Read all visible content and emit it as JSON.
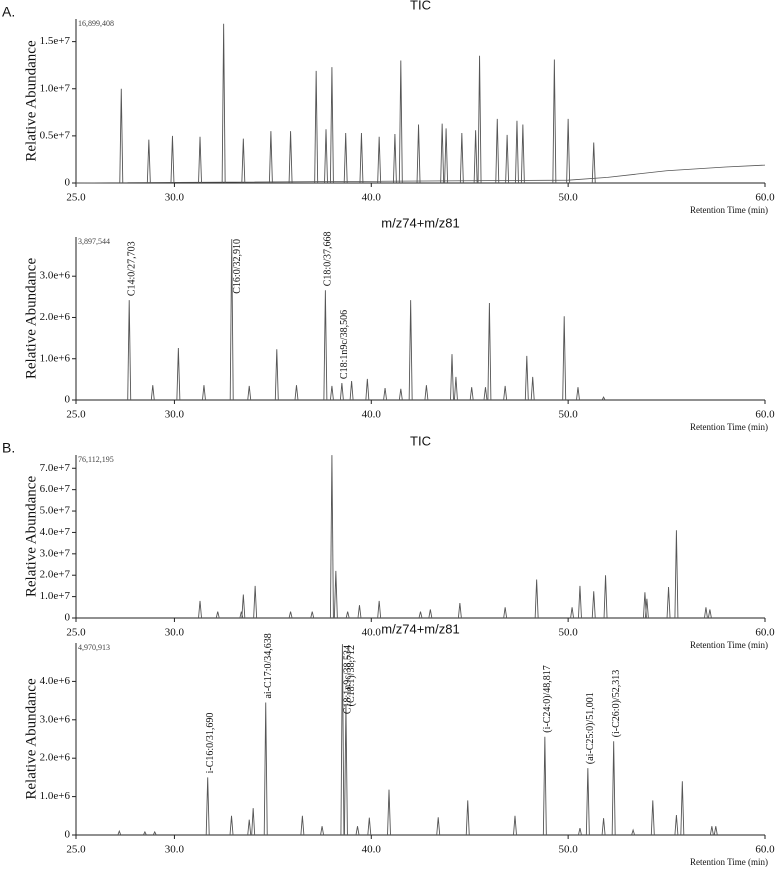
{
  "chart_data": [
    {
      "type": "peaks",
      "panel_label": "A.",
      "title": "TIC",
      "ylabel": "Relative Abundance",
      "xlabel": "Retention Time (min)",
      "max_label": "16,899,408",
      "color": "#555555",
      "xlim": [
        25,
        60
      ],
      "xticks": [
        {
          "value": 25,
          "label": "25.0"
        },
        {
          "value": 30,
          "label": "30.0"
        },
        {
          "value": 40,
          "label": "40.0"
        },
        {
          "value": 50,
          "label": "50.0"
        },
        {
          "value": 60,
          "label": "60.0"
        }
      ],
      "ylim": [
        0,
        17400000
      ],
      "yticks": [
        0,
        {
          "value": 5000000,
          "label": "0.5e+7"
        },
        {
          "value": 10000000,
          "label": "1.0e+7"
        },
        {
          "value": 15000000,
          "label": "1.5e+7"
        }
      ],
      "peaks": {
        "x": [
          27.3,
          28.7,
          29.9,
          31.3,
          32.5,
          33.5,
          34.9,
          35.9,
          37.2,
          37.7,
          38.0,
          38.7,
          39.5,
          40.4,
          41.2,
          41.5,
          42.4,
          43.6,
          43.8,
          44.6,
          45.3,
          45.5,
          46.4,
          46.9,
          47.4,
          47.7,
          49.3,
          50.0,
          51.3
        ],
        "values": [
          10000000,
          4600000,
          5000000,
          4900000,
          16899408,
          4700000,
          5500000,
          5500000,
          11900000,
          5700000,
          12300000,
          5300000,
          5300000,
          4900000,
          5200000,
          13000000,
          6200000,
          6300000,
          5800000,
          5300000,
          5600000,
          13500000,
          6800000,
          5100000,
          6600000,
          6200000,
          13100000,
          6800000,
          4300000
        ]
      },
      "baseline": {
        "x": [
          25,
          50,
          52,
          55,
          58,
          60
        ],
        "values": [
          0,
          300000,
          600000,
          1300000,
          1700000,
          1900000
        ]
      },
      "annotations": []
    },
    {
      "type": "peaks",
      "title": "m/z74+m/z81",
      "ylabel": "Relative Abundance",
      "xlabel": "Retention Time (min)",
      "max_label": "3,897,544",
      "color": "#555555",
      "xlim": [
        25,
        60
      ],
      "xticks": [
        {
          "value": 25,
          "label": "25.0"
        },
        {
          "value": 30,
          "label": "30.0"
        },
        {
          "value": 40,
          "label": "40.0"
        },
        {
          "value": 50,
          "label": "50.0"
        },
        {
          "value": 60,
          "label": "60.0"
        }
      ],
      "ylim": [
        0,
        3950000
      ],
      "yticks": [
        0,
        {
          "value": 1000000,
          "label": "1.0e+6"
        },
        {
          "value": 2000000,
          "label": "2.0e+6"
        },
        {
          "value": 3000000,
          "label": "3.0e+6"
        }
      ],
      "peaks": {
        "x": [
          27.703,
          28.9,
          30.2,
          31.5,
          32.91,
          33.8,
          35.2,
          36.2,
          37.668,
          38.0,
          38.506,
          39.0,
          39.8,
          40.7,
          41.5,
          42.0,
          42.8,
          44.1,
          44.3,
          45.1,
          45.8,
          46.0,
          46.8,
          47.9,
          48.2,
          49.8,
          50.5,
          51.8
        ],
        "values": [
          2420000,
          360000,
          1260000,
          360000,
          3897544,
          340000,
          1230000,
          360000,
          2660000,
          340000,
          410000,
          460000,
          510000,
          290000,
          270000,
          2420000,
          360000,
          1110000,
          560000,
          310000,
          310000,
          2350000,
          340000,
          1070000,
          560000,
          2030000,
          310000,
          70000
        ]
      },
      "annotations": [
        {
          "x": 27.703,
          "text": "C14:0/27,703"
        },
        {
          "x": 32.91,
          "text": "C16:0/32,910"
        },
        {
          "x": 37.668,
          "text": "C18:0/37,668"
        },
        {
          "x": 38.506,
          "text": "C18:1n9c/38,506"
        }
      ]
    },
    {
      "type": "peaks",
      "panel_label": "B.",
      "title": "TIC",
      "ylabel": "Relative Abundance",
      "xlabel": "Retention Time (min)",
      "max_label": "76,112,195",
      "color": "#555555",
      "xlim": [
        25,
        60
      ],
      "xticks": [
        {
          "value": 25,
          "label": "25.0"
        },
        {
          "value": 30,
          "label": "30.0"
        },
        {
          "value": 40,
          "label": "40.0"
        },
        {
          "value": 50,
          "label": "50.0"
        },
        {
          "value": 60,
          "label": "60.0"
        }
      ],
      "ylim": [
        0,
        76200000
      ],
      "yticks": [
        0,
        {
          "value": 10000000,
          "label": "1.0e+7"
        },
        {
          "value": 20000000,
          "label": "2.0e+7"
        },
        {
          "value": 30000000,
          "label": "3.0e+7"
        },
        {
          "value": 40000000,
          "label": "4.0e+7"
        },
        {
          "value": 50000000,
          "label": "5.0e+7"
        },
        {
          "value": 60000000,
          "label": "6.0e+7"
        },
        {
          "value": 70000000,
          "label": "7.0e+7"
        }
      ],
      "peaks": {
        "x": [
          31.3,
          32.2,
          33.4,
          33.5,
          34.1,
          35.9,
          37.0,
          38.0,
          38.2,
          38.8,
          39.4,
          40.4,
          42.5,
          43.0,
          44.5,
          46.8,
          48.4,
          50.2,
          50.6,
          51.3,
          51.9,
          53.9,
          54.0,
          55.1,
          55.5,
          57.0,
          57.2
        ],
        "values": [
          8000000,
          3000000,
          3000000,
          11000000,
          15000000,
          3000000,
          3000000,
          76112195,
          22000000,
          3000000,
          6000000,
          8000000,
          3000000,
          4000000,
          7000000,
          5000000,
          18000000,
          5000000,
          15000000,
          12500000,
          20000000,
          12000000,
          9000000,
          14500000,
          41000000,
          5000000,
          4000000
        ]
      },
      "annotations": []
    },
    {
      "type": "peaks",
      "title": "m/z74+m/z81",
      "ylabel": "Relative Abundance",
      "xlabel": "Retention Time (min)",
      "max_label": "4,970,913",
      "color": "#555555",
      "xlim": [
        25,
        60
      ],
      "xticks": [
        {
          "value": 25,
          "label": "25.0"
        },
        {
          "value": 30,
          "label": "30.0"
        },
        {
          "value": 40,
          "label": "40.0"
        },
        {
          "value": 50,
          "label": "50.0"
        },
        {
          "value": 60,
          "label": "60.0"
        }
      ],
      "ylim": [
        0,
        5000000
      ],
      "yticks": [
        0,
        {
          "value": 1000000,
          "label": "1.0e+6"
        },
        {
          "value": 2000000,
          "label": "2.0e+6"
        },
        {
          "value": 3000000,
          "label": "3.0e+6"
        },
        {
          "value": 4000000,
          "label": "4.0e+6"
        }
      ],
      "peaks": {
        "x": [
          27.2,
          28.5,
          29.0,
          31.69,
          32.9,
          33.8,
          34.0,
          34.638,
          36.5,
          37.5,
          38.534,
          38.712,
          39.3,
          39.9,
          40.9,
          43.4,
          44.9,
          47.3,
          48.817,
          50.6,
          51.001,
          51.8,
          52.313,
          53.3,
          54.3,
          55.5,
          55.8,
          57.3,
          57.5
        ],
        "values": [
          100000,
          80000,
          80000,
          1500000,
          500000,
          400000,
          700000,
          3450000,
          500000,
          230000,
          4970913,
          3400000,
          230000,
          450000,
          1180000,
          460000,
          900000,
          500000,
          2560000,
          180000,
          1740000,
          440000,
          2440000,
          130000,
          900000,
          520000,
          1400000,
          230000,
          230000
        ]
      },
      "annotations": [
        {
          "x": 31.69,
          "text": "i-C16:0/31,690"
        },
        {
          "x": 34.638,
          "text": "ai-C17:0/34,638"
        },
        {
          "x": 38.712,
          "text": "(C18:1)/38,712"
        },
        {
          "x": 38.534,
          "text": "C18:1n9c/38,534"
        },
        {
          "x": 48.817,
          "text": "(i-C24:0)/48,817"
        },
        {
          "x": 51.001,
          "text": "(ai-C25:0)/51,001"
        },
        {
          "x": 52.313,
          "text": "(i-C26:0)/52,313"
        }
      ]
    }
  ]
}
